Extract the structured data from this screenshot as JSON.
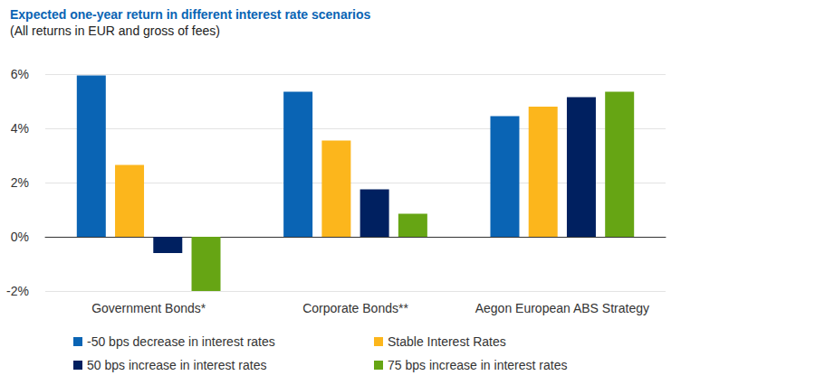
{
  "chart_data": {
    "type": "bar",
    "title": "Expected one-year return in different interest rate scenarios",
    "subtitle": "(All returns in EUR and gross of fees)",
    "categories": [
      "Government Bonds*",
      "Corporate Bonds**",
      "Aegon European ABS Strategy"
    ],
    "series": [
      {
        "name": "-50 bps decrease in interest rates",
        "color": "#0a64b4",
        "values": [
          5.95,
          5.35,
          4.45
        ]
      },
      {
        "name": "Stable Interest Rates",
        "color": "#fcb61c",
        "values": [
          2.65,
          3.55,
          4.8
        ]
      },
      {
        "name": "50 bps increase in interest rates",
        "color": "#002060",
        "values": [
          -0.6,
          1.75,
          5.15
        ]
      },
      {
        "name": "75 bps increase in interest rates",
        "color": "#66a514",
        "values": [
          -2.0,
          0.85,
          5.35
        ]
      }
    ],
    "ylim": [
      -2,
      6
    ],
    "yticks": [
      {
        "value": -2,
        "label": "-2%"
      },
      {
        "value": 0,
        "label": "0%"
      },
      {
        "value": 2,
        "label": "2%"
      },
      {
        "value": 4,
        "label": "4%"
      },
      {
        "value": 6,
        "label": "6%"
      }
    ],
    "grid": true,
    "legend": "bottom"
  }
}
